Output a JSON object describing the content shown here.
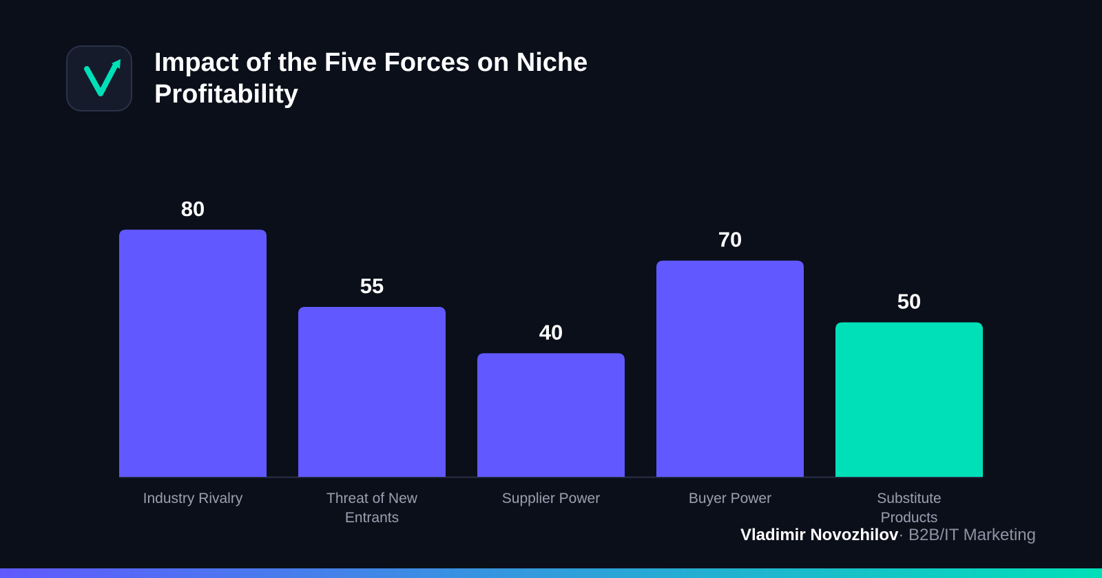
{
  "chart_data": {
    "type": "bar",
    "title": "Impact of the Five Forces on Niche Profitability",
    "categories": [
      "Industry Rivalry",
      "Threat of New Entrants",
      "Supplier Power",
      "Buyer Power",
      "Substitute Products"
    ],
    "values": [
      80,
      55,
      40,
      70,
      50
    ],
    "colors": [
      "#6159ff",
      "#6159ff",
      "#6159ff",
      "#6159ff",
      "#00e0b8"
    ],
    "author": "Vladimir Novozhilov",
    "tagline": "· B2B/IT Marketing"
  }
}
